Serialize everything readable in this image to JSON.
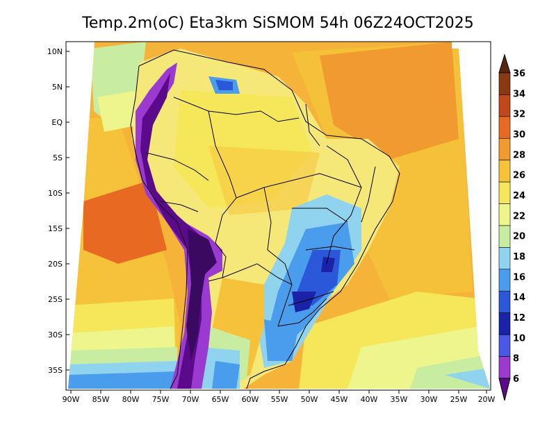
{
  "title": "Temp.2m(oC) Eta3km SiSMOM 54h 06Z24OCT2025",
  "lat_labels": [
    "10N",
    "5N",
    "EQ",
    "5S",
    "10S",
    "15S",
    "20S",
    "25S",
    "30S",
    "35S"
  ],
  "lon_labels": [
    "90W",
    "85W",
    "80W",
    "75W",
    "70W",
    "65W",
    "60W",
    "55W",
    "50W",
    "45W",
    "40W",
    "35W",
    "30W",
    "25W",
    "20W"
  ],
  "colorbar": {
    "labels": [
      "36",
      "34",
      "32",
      "30",
      "28",
      "26",
      "24",
      "22",
      "20",
      "18",
      "16",
      "14",
      "12",
      "10",
      "8",
      "6"
    ],
    "colors": [
      "#5a2410",
      "#8a3a12",
      "#c0481a",
      "#e86a22",
      "#f09a30",
      "#f5c23a",
      "#f5e65a",
      "#eef58c",
      "#c8eda0",
      "#8fd3ee",
      "#4a9cec",
      "#2a58d8",
      "#1a22a8",
      "#4a58e8",
      "#9a3ad0",
      "#5a0a8a"
    ]
  },
  "palette": {
    "ocean_warm": "#f5b33a",
    "ocean_mid": "#f5d24a",
    "ocean_cool": "#d8ee8c",
    "land_warm": "#f5e878",
    "highland_cold": "#6a1aa0",
    "south_cool": "#5a9aec",
    "outline": "#000000"
  }
}
